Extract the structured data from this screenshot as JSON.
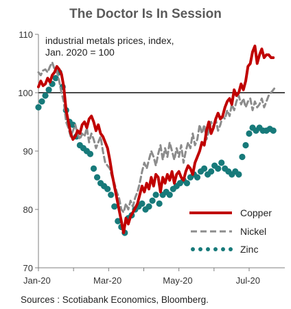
{
  "chart_data": {
    "type": "line",
    "title": "The Doctor Is In Session",
    "subtitle_lines": [
      "industrial metals prices, index,",
      "Jan. 2020 = 100"
    ],
    "source": "Sources : Scotiabank Economics, Bloomberg.",
    "x_tick_labels": [
      "Jan-20",
      "Mar-20",
      "May-20",
      "Jul-20"
    ],
    "x_tick_days": [
      0,
      60,
      121,
      182
    ],
    "y_tick_labels": [
      "70",
      "80",
      "90",
      "100",
      "110"
    ],
    "y_ticks": [
      70,
      80,
      90,
      100,
      110
    ],
    "ylim": [
      70,
      110
    ],
    "xlim_days": [
      0,
      214
    ],
    "reference_line": 100,
    "legend_position": "right",
    "series": [
      {
        "name": "Copper",
        "color": "#c00000",
        "style": "solid",
        "points": [
          [
            0,
            101.0
          ],
          [
            2,
            102.0
          ],
          [
            4,
            101.2
          ],
          [
            6,
            101.5
          ],
          [
            8,
            102.5
          ],
          [
            10,
            101.8
          ],
          [
            12,
            103.0
          ],
          [
            14,
            103.5
          ],
          [
            16,
            104.5
          ],
          [
            18,
            104.0
          ],
          [
            20,
            103.2
          ],
          [
            22,
            101.0
          ],
          [
            24,
            97.0
          ],
          [
            26,
            95.0
          ],
          [
            28,
            93.0
          ],
          [
            30,
            92.0
          ],
          [
            32,
            92.5
          ],
          [
            34,
            93.5
          ],
          [
            36,
            93.0
          ],
          [
            38,
            94.5
          ],
          [
            40,
            95.0
          ],
          [
            42,
            94.0
          ],
          [
            44,
            95.5
          ],
          [
            46,
            96.0
          ],
          [
            48,
            95.0
          ],
          [
            50,
            93.5
          ],
          [
            52,
            94.5
          ],
          [
            54,
            93.0
          ],
          [
            56,
            92.5
          ],
          [
            58,
            91.5
          ],
          [
            60,
            90.5
          ],
          [
            62,
            88.5
          ],
          [
            64,
            86.0
          ],
          [
            66,
            84.0
          ],
          [
            68,
            82.0
          ],
          [
            70,
            80.0
          ],
          [
            72,
            78.0
          ],
          [
            74,
            76.0
          ],
          [
            76,
            78.5
          ],
          [
            78,
            77.5
          ],
          [
            80,
            78.8
          ],
          [
            82,
            79.5
          ],
          [
            84,
            80.2
          ],
          [
            86,
            81.0
          ],
          [
            88,
            82.5
          ],
          [
            90,
            84.0
          ],
          [
            92,
            83.0
          ],
          [
            94,
            84.5
          ],
          [
            96,
            83.5
          ],
          [
            98,
            85.5
          ],
          [
            100,
            84.0
          ],
          [
            102,
            86.0
          ],
          [
            104,
            85.5
          ],
          [
            106,
            83.0
          ],
          [
            108,
            85.5
          ],
          [
            110,
            84.5
          ],
          [
            112,
            86.0
          ],
          [
            114,
            85.0
          ],
          [
            116,
            86.5
          ],
          [
            118,
            84.5
          ],
          [
            120,
            86.0
          ],
          [
            122,
            86.5
          ],
          [
            124,
            85.5
          ],
          [
            126,
            85.0
          ],
          [
            128,
            86.5
          ],
          [
            130,
            87.5
          ],
          [
            132,
            87.0
          ],
          [
            134,
            86.0
          ],
          [
            136,
            88.0
          ],
          [
            138,
            89.0
          ],
          [
            140,
            90.0
          ],
          [
            142,
            91.5
          ],
          [
            144,
            91.0
          ],
          [
            146,
            93.5
          ],
          [
            148,
            95.0
          ],
          [
            150,
            93.0
          ],
          [
            152,
            94.0
          ],
          [
            154,
            95.5
          ],
          [
            156,
            96.5
          ],
          [
            158,
            95.5
          ],
          [
            160,
            96.0
          ],
          [
            162,
            97.5
          ],
          [
            164,
            98.5
          ],
          [
            166,
            99.0
          ],
          [
            168,
            98.0
          ],
          [
            170,
            100.5
          ],
          [
            172,
            99.5
          ],
          [
            174,
            100.0
          ],
          [
            176,
            101.5
          ],
          [
            178,
            100.5
          ],
          [
            180,
            102.0
          ],
          [
            182,
            104.5
          ],
          [
            184,
            105.0
          ],
          [
            186,
            107.0
          ],
          [
            188,
            108.0
          ],
          [
            190,
            105.0
          ],
          [
            192,
            106.5
          ],
          [
            194,
            107.5
          ],
          [
            196,
            106.0
          ],
          [
            198,
            106.5
          ],
          [
            200,
            106.5
          ],
          [
            202,
            106.0
          ],
          [
            204,
            106.0
          ]
        ]
      },
      {
        "name": "Nickel",
        "color": "#8c8c8c",
        "style": "dashed",
        "points": [
          [
            0,
            103.5
          ],
          [
            2,
            103.0
          ],
          [
            4,
            103.8
          ],
          [
            6,
            104.0
          ],
          [
            8,
            103.5
          ],
          [
            10,
            104.5
          ],
          [
            12,
            105.2
          ],
          [
            14,
            104.0
          ],
          [
            16,
            103.8
          ],
          [
            18,
            102.0
          ],
          [
            20,
            100.0
          ],
          [
            22,
            98.5
          ],
          [
            24,
            95.0
          ],
          [
            26,
            94.0
          ],
          [
            28,
            92.5
          ],
          [
            30,
            93.5
          ],
          [
            32,
            94.5
          ],
          [
            34,
            93.0
          ],
          [
            36,
            92.0
          ],
          [
            38,
            93.0
          ],
          [
            40,
            92.5
          ],
          [
            42,
            94.0
          ],
          [
            44,
            91.5
          ],
          [
            46,
            93.0
          ],
          [
            48,
            92.0
          ],
          [
            50,
            90.5
          ],
          [
            52,
            91.5
          ],
          [
            54,
            92.5
          ],
          [
            56,
            90.0
          ],
          [
            58,
            88.0
          ],
          [
            60,
            87.5
          ],
          [
            62,
            87.0
          ],
          [
            64,
            85.5
          ],
          [
            66,
            84.5
          ],
          [
            68,
            83.0
          ],
          [
            70,
            82.0
          ],
          [
            72,
            80.0
          ],
          [
            74,
            79.5
          ],
          [
            76,
            81.0
          ],
          [
            78,
            80.0
          ],
          [
            80,
            81.5
          ],
          [
            82,
            80.5
          ],
          [
            84,
            82.0
          ],
          [
            86,
            83.0
          ],
          [
            88,
            84.5
          ],
          [
            90,
            86.5
          ],
          [
            92,
            88.0
          ],
          [
            94,
            87.0
          ],
          [
            96,
            88.5
          ],
          [
            98,
            90.0
          ],
          [
            100,
            89.0
          ],
          [
            102,
            87.5
          ],
          [
            104,
            89.5
          ],
          [
            106,
            91.0
          ],
          [
            108,
            88.5
          ],
          [
            110,
            90.5
          ],
          [
            112,
            89.0
          ],
          [
            114,
            91.5
          ],
          [
            116,
            90.0
          ],
          [
            118,
            88.5
          ],
          [
            120,
            90.5
          ],
          [
            122,
            89.0
          ],
          [
            124,
            91.0
          ],
          [
            126,
            88.0
          ],
          [
            128,
            90.0
          ],
          [
            130,
            91.5
          ],
          [
            132,
            90.5
          ],
          [
            134,
            93.0
          ],
          [
            136,
            91.0
          ],
          [
            138,
            92.0
          ],
          [
            140,
            94.5
          ],
          [
            142,
            93.0
          ],
          [
            144,
            94.5
          ],
          [
            146,
            92.0
          ],
          [
            148,
            93.5
          ],
          [
            150,
            95.0
          ],
          [
            152,
            94.0
          ],
          [
            154,
            95.5
          ],
          [
            156,
            93.5
          ],
          [
            158,
            94.5
          ],
          [
            160,
            96.0
          ],
          [
            162,
            95.5
          ],
          [
            164,
            97.0
          ],
          [
            166,
            96.0
          ],
          [
            168,
            98.0
          ],
          [
            170,
            97.0
          ],
          [
            172,
            98.5
          ],
          [
            174,
            99.5
          ],
          [
            176,
            98.0
          ],
          [
            178,
            99.0
          ],
          [
            180,
            97.5
          ],
          [
            182,
            98.5
          ],
          [
            184,
            99.0
          ],
          [
            186,
            97.0
          ],
          [
            188,
            98.5
          ],
          [
            190,
            97.5
          ],
          [
            192,
            98.0
          ],
          [
            194,
            99.0
          ],
          [
            196,
            97.5
          ],
          [
            198,
            98.5
          ],
          [
            200,
            99.5
          ],
          [
            202,
            100.0
          ],
          [
            204,
            100.5
          ],
          [
            206,
            101.0
          ]
        ]
      },
      {
        "name": "Zinc",
        "color": "#177a7a",
        "style": "dotted",
        "points": [
          [
            0,
            97.5
          ],
          [
            3,
            98.5
          ],
          [
            6,
            99.5
          ],
          [
            9,
            100.5
          ],
          [
            12,
            101.5
          ],
          [
            15,
            102.5
          ],
          [
            18,
            103.5
          ],
          [
            21,
            101.0
          ],
          [
            24,
            97.0
          ],
          [
            27,
            95.0
          ],
          [
            30,
            94.5
          ],
          [
            33,
            92.5
          ],
          [
            36,
            91.0
          ],
          [
            39,
            90.5
          ],
          [
            42,
            90.0
          ],
          [
            45,
            89.5
          ],
          [
            48,
            87.0
          ],
          [
            51,
            85.5
          ],
          [
            54,
            84.5
          ],
          [
            57,
            84.0
          ],
          [
            60,
            83.5
          ],
          [
            63,
            82.5
          ],
          [
            66,
            80.5
          ],
          [
            69,
            78.0
          ],
          [
            72,
            77.0
          ],
          [
            75,
            76.0
          ],
          [
            78,
            78.5
          ],
          [
            81,
            79.0
          ],
          [
            84,
            80.0
          ],
          [
            87,
            80.5
          ],
          [
            90,
            81.0
          ],
          [
            93,
            80.0
          ],
          [
            96,
            80.5
          ],
          [
            99,
            81.5
          ],
          [
            102,
            82.5
          ],
          [
            105,
            81.0
          ],
          [
            108,
            82.5
          ],
          [
            111,
            83.0
          ],
          [
            114,
            82.5
          ],
          [
            117,
            83.5
          ],
          [
            120,
            84.0
          ],
          [
            123,
            84.5
          ],
          [
            126,
            85.0
          ],
          [
            129,
            84.5
          ],
          [
            132,
            85.5
          ],
          [
            135,
            86.0
          ],
          [
            138,
            85.5
          ],
          [
            141,
            86.5
          ],
          [
            144,
            87.0
          ],
          [
            147,
            86.0
          ],
          [
            150,
            86.5
          ],
          [
            153,
            87.5
          ],
          [
            156,
            87.0
          ],
          [
            159,
            88.0
          ],
          [
            162,
            87.0
          ],
          [
            165,
            86.5
          ],
          [
            168,
            86.0
          ],
          [
            171,
            86.5
          ],
          [
            174,
            86.0
          ],
          [
            177,
            89.0
          ],
          [
            180,
            91.0
          ],
          [
            183,
            93.0
          ],
          [
            186,
            94.0
          ],
          [
            189,
            93.5
          ],
          [
            192,
            94.0
          ],
          [
            195,
            93.5
          ],
          [
            198,
            93.5
          ],
          [
            201,
            93.8
          ],
          [
            204,
            93.5
          ]
        ]
      }
    ]
  }
}
